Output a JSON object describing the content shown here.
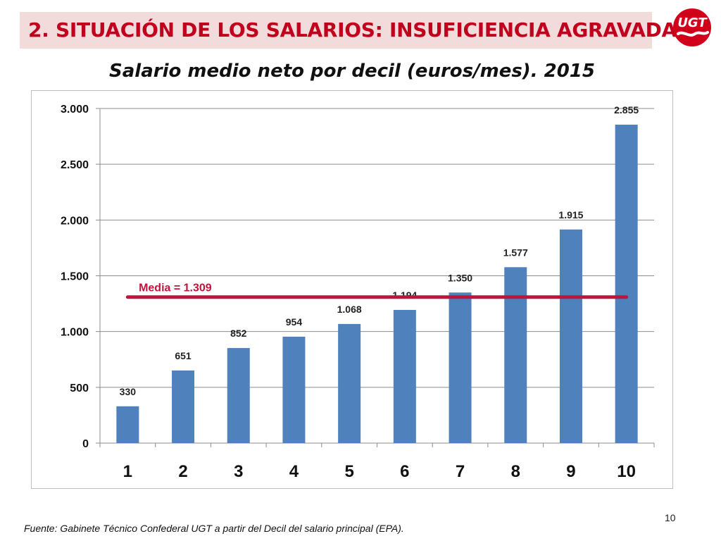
{
  "header": {
    "title": "2.  SITUACIÓN DE LOS SALARIOS: INSUFICIENCIA AGRAVADA",
    "logo_text": "UGT"
  },
  "colors": {
    "title_text": "#c0001d",
    "title_bar": "#f2dcdb",
    "bar_fill": "#4f81bd",
    "mean_line": "#c0143c"
  },
  "chart_data": {
    "type": "bar",
    "title": "Salario medio neto por decil (euros/mes). 2015",
    "categories": [
      "1",
      "2",
      "3",
      "4",
      "5",
      "6",
      "7",
      "8",
      "9",
      "10"
    ],
    "values": [
      330,
      651,
      852,
      954,
      1068,
      1194,
      1350,
      1577,
      1915,
      2855
    ],
    "data_labels": [
      "330",
      "651",
      "852",
      "954",
      "1.068",
      "1.194",
      "1.350",
      "1.577",
      "1.915",
      "2.855"
    ],
    "ylim": [
      0,
      3000
    ],
    "yticks": [
      0,
      500,
      1000,
      1500,
      2000,
      2500,
      3000
    ],
    "ytick_labels": [
      "0",
      "500",
      "1.000",
      "1.500",
      "2.000",
      "2.500",
      "3.000"
    ],
    "grid": true,
    "mean": {
      "value": 1309,
      "label": "Media = 1.309"
    }
  },
  "footer": {
    "source": "Fuente: Gabinete Técnico Confederal UGT a partir del Decil del salario principal (EPA).",
    "page_number": "10"
  }
}
